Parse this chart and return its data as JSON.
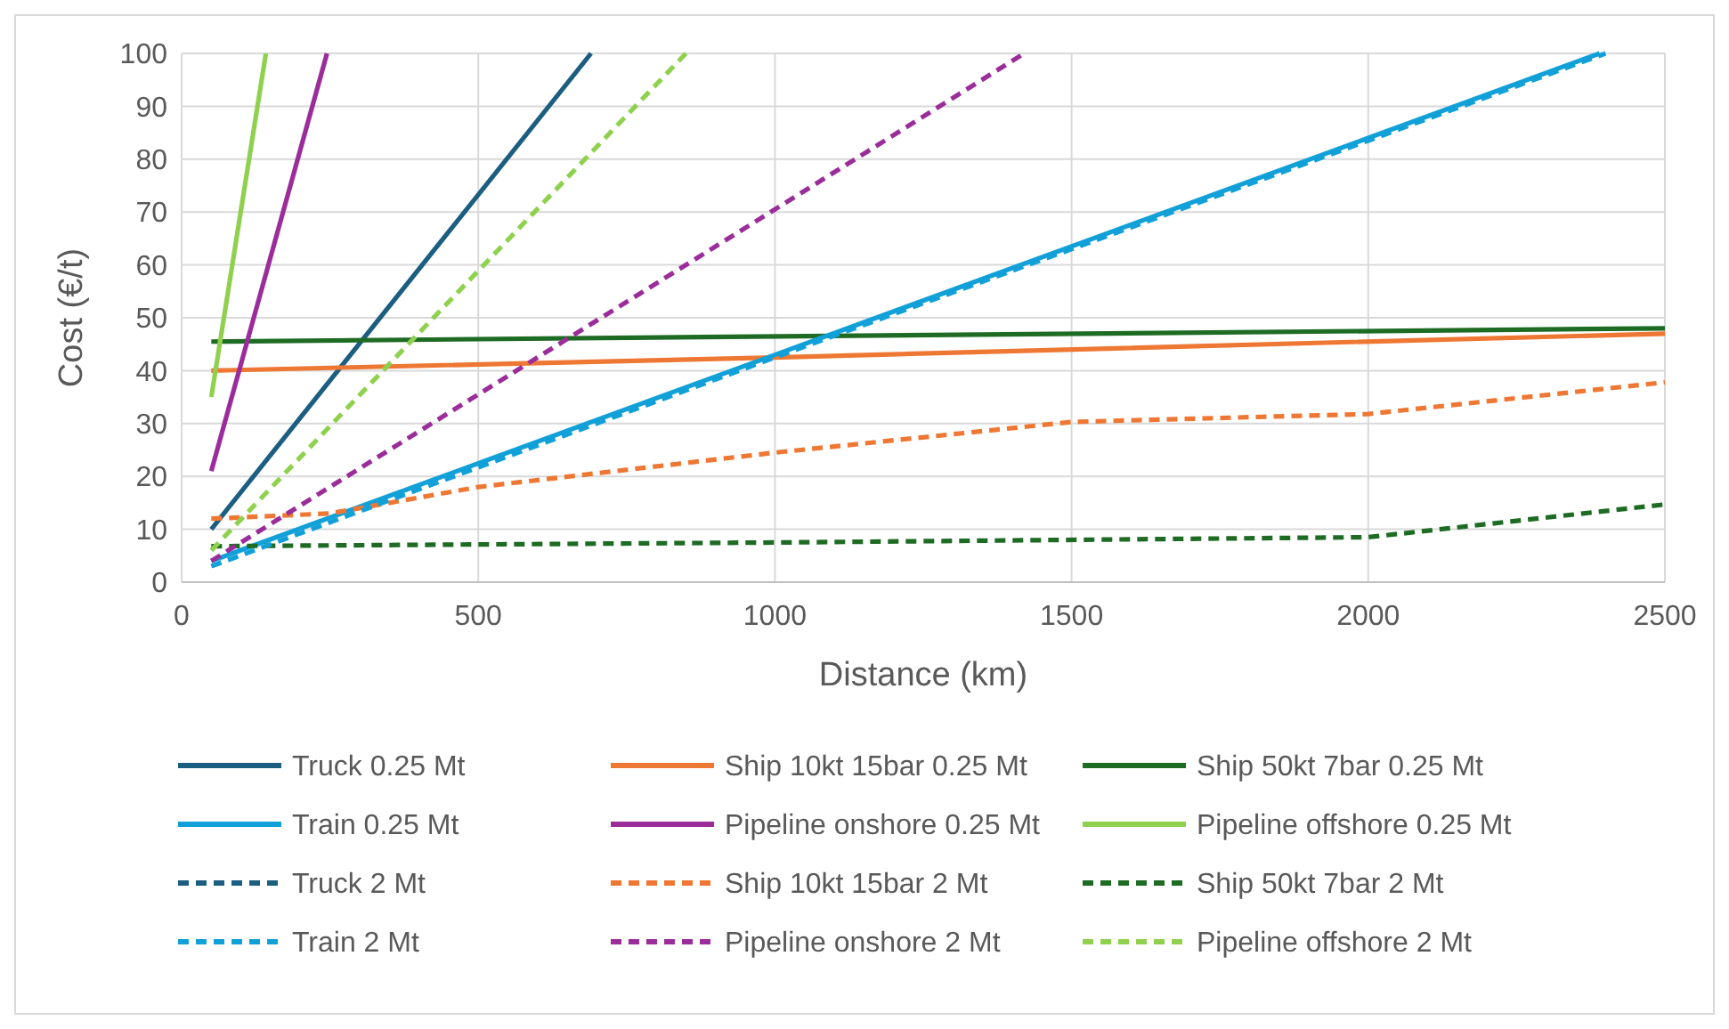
{
  "chart_data": {
    "type": "line",
    "xlabel": "Distance (km)",
    "ylabel": "Cost (€/t)",
    "xlim": [
      0,
      2500
    ],
    "xticks": [
      0,
      500,
      1000,
      1500,
      2000,
      2500
    ],
    "ylim": [
      0,
      100
    ],
    "yticks": [
      0,
      10,
      20,
      30,
      40,
      50,
      60,
      70,
      80,
      90,
      100
    ],
    "grid": true,
    "legend": "bottom",
    "marker": "none",
    "series": [
      {
        "name": "Truck 0.25 Mt",
        "color": "#1b5e80",
        "line_style": "solid",
        "x": [
          50,
          690
        ],
        "values": [
          10,
          100
        ]
      },
      {
        "name": "Ship 10kt 15bar 0.25 Mt",
        "color": "#ee7733",
        "line_style": "solid",
        "x": [
          50,
          1000,
          2500
        ],
        "values": [
          40,
          42.5,
          47
        ]
      },
      {
        "name": "Ship 50kt 7bar 0.25 Mt",
        "color": "#1e6b24",
        "line_style": "solid",
        "x": [
          50,
          2500
        ],
        "values": [
          45.5,
          48
        ]
      },
      {
        "name": "Train 0.25 Mt",
        "color": "#11a0d8",
        "line_style": "solid",
        "x": [
          50,
          1000,
          2000,
          2390
        ],
        "values": [
          4,
          43,
          84,
          100
        ]
      },
      {
        "name": "Pipeline onshore 0.25 Mt",
        "color": "#9b2d9b",
        "line_style": "solid",
        "x": [
          50,
          245
        ],
        "values": [
          21,
          100
        ]
      },
      {
        "name": "Pipeline offshore 0.25 Mt",
        "color": "#8fd14f",
        "line_style": "solid",
        "x": [
          50,
          142
        ],
        "values": [
          35,
          100
        ]
      },
      {
        "name": "Truck 2 Mt",
        "color": "#1b5e80",
        "line_style": "dashed"
      },
      {
        "name": "Ship 10kt 15bar 2 Mt",
        "color": "#ee7733",
        "line_style": "dashed",
        "x": [
          50,
          250,
          500,
          1000,
          1500,
          2000,
          2500
        ],
        "values": [
          12,
          13,
          18,
          24.5,
          30.3,
          31.8,
          37.8
        ]
      },
      {
        "name": "Ship 50kt 7bar 2 Mt",
        "color": "#1e6b24",
        "line_style": "dashed",
        "x": [
          50,
          1000,
          2000,
          2500
        ],
        "values": [
          6.8,
          7.5,
          8.5,
          14.7
        ]
      },
      {
        "name": "Train 2 Mt",
        "color": "#11a0d8",
        "line_style": "dashed",
        "x": [
          50,
          1000,
          2000,
          2400
        ],
        "values": [
          3,
          42.5,
          83.5,
          100
        ]
      },
      {
        "name": "Pipeline onshore 2 Mt",
        "color": "#9b2d9b",
        "line_style": "dashed",
        "x": [
          50,
          1000,
          1420
        ],
        "values": [
          4,
          70.5,
          100
        ]
      },
      {
        "name": "Pipeline offshore 2 Mt",
        "color": "#8fd14f",
        "line_style": "dashed",
        "x": [
          50,
          850
        ],
        "values": [
          6,
          100
        ]
      }
    ]
  }
}
